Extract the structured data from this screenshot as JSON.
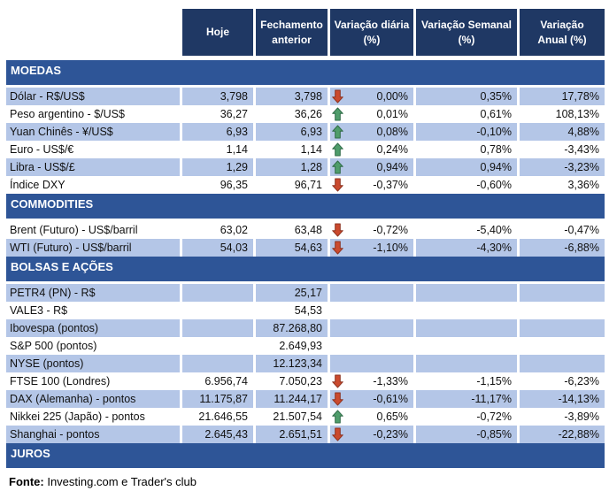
{
  "header": {
    "columns": [
      "Hoje",
      "Fechamento\nanterior",
      "Variação diária\n(%)",
      "Variação Semanal\n(%)",
      "Variação\nAnual (%)"
    ]
  },
  "sections": [
    {
      "title": "MOEDAS",
      "rows": [
        {
          "label": "Dólar - R$/US$",
          "hoje": "3,798",
          "fechamento": "3,798",
          "arrow": "down",
          "diaria": "0,00%",
          "semanal": "0,35%",
          "anual": "17,78%",
          "shaded": true
        },
        {
          "label": "Peso argentino - $/US$",
          "hoje": "36,27",
          "fechamento": "36,26",
          "arrow": "up",
          "diaria": "0,01%",
          "semanal": "0,61%",
          "anual": "108,13%",
          "shaded": false
        },
        {
          "label": "Yuan Chinês - ¥/US$",
          "hoje": "6,93",
          "fechamento": "6,93",
          "arrow": "up",
          "diaria": "0,08%",
          "semanal": "-0,10%",
          "anual": "4,88%",
          "shaded": true
        },
        {
          "label": "Euro - US$/€",
          "hoje": "1,14",
          "fechamento": "1,14",
          "arrow": "up",
          "diaria": "0,24%",
          "semanal": "0,78%",
          "anual": "-3,43%",
          "shaded": false
        },
        {
          "label": "Libra - US$/£",
          "hoje": "1,29",
          "fechamento": "1,28",
          "arrow": "up",
          "diaria": "0,94%",
          "semanal": "0,94%",
          "anual": "-3,23%",
          "shaded": true
        },
        {
          "label": "Índice DXY",
          "hoje": "96,35",
          "fechamento": "96,71",
          "arrow": "down",
          "diaria": "-0,37%",
          "semanal": "-0,60%",
          "anual": "3,36%",
          "shaded": false
        }
      ]
    },
    {
      "title": "COMMODITIES",
      "rows": [
        {
          "label": "Brent (Futuro) - US$/barril",
          "hoje": "63,02",
          "fechamento": "63,48",
          "arrow": "down",
          "diaria": "-0,72%",
          "semanal": "-5,40%",
          "anual": "-0,47%",
          "shaded": false
        },
        {
          "label": "WTI (Futuro) - US$/barril",
          "hoje": "54,03",
          "fechamento": "54,63",
          "arrow": "down",
          "diaria": "-1,10%",
          "semanal": "-4,30%",
          "anual": "-6,88%",
          "shaded": true
        }
      ]
    },
    {
      "title": "BOLSAS E AÇÕES",
      "rows": [
        {
          "label": "PETR4 (PN) - R$",
          "hoje": "",
          "fechamento": "25,17",
          "arrow": "",
          "diaria": "",
          "semanal": "",
          "anual": "",
          "shaded": true
        },
        {
          "label": "VALE3 - R$",
          "hoje": "",
          "fechamento": "54,53",
          "arrow": "",
          "diaria": "",
          "semanal": "",
          "anual": "",
          "shaded": false
        },
        {
          "label": "Ibovespa (pontos)",
          "hoje": "",
          "fechamento": "87.268,80",
          "arrow": "",
          "diaria": "",
          "semanal": "",
          "anual": "",
          "shaded": true
        },
        {
          "label": "S&P 500 (pontos)",
          "hoje": "",
          "fechamento": "2.649,93",
          "arrow": "",
          "diaria": "",
          "semanal": "",
          "anual": "",
          "shaded": false
        },
        {
          "label": "NYSE (pontos)",
          "hoje": "",
          "fechamento": "12.123,34",
          "arrow": "",
          "diaria": "",
          "semanal": "",
          "anual": "",
          "shaded": true
        },
        {
          "label": "FTSE 100 (Londres)",
          "hoje": "6.956,74",
          "fechamento": "7.050,23",
          "arrow": "down",
          "diaria": "-1,33%",
          "semanal": "-1,15%",
          "anual": "-6,23%",
          "shaded": false
        },
        {
          "label": "DAX (Alemanha) - pontos",
          "hoje": "11.175,87",
          "fechamento": "11.244,17",
          "arrow": "down",
          "diaria": "-0,61%",
          "semanal": "-11,17%",
          "anual": "-14,13%",
          "shaded": true
        },
        {
          "label": "Nikkei 225 (Japão) - pontos",
          "hoje": "21.646,55",
          "fechamento": "21.507,54",
          "arrow": "up",
          "diaria": "0,65%",
          "semanal": "-0,72%",
          "anual": "-3,89%",
          "shaded": false
        },
        {
          "label": "Shanghai - pontos",
          "hoje": "2.645,43",
          "fechamento": "2.651,51",
          "arrow": "down",
          "diaria": "-0,23%",
          "semanal": "-0,85%",
          "anual": "-22,88%",
          "shaded": true
        }
      ]
    },
    {
      "title": "JUROS",
      "rows": []
    }
  ],
  "footer": {
    "source_label": "Fonte:",
    "source_text": " Investing.com e Trader's club"
  },
  "colors": {
    "header_bg": "#1F3864",
    "band_bg": "#2E5597",
    "stripe_bg": "#B4C6E7",
    "arrow_up": "#4F9D6B",
    "arrow_up_border": "#2F6B47",
    "arrow_down": "#CB4A2E",
    "arrow_down_border": "#8E3320"
  },
  "icons": {
    "up": "up-arrow-icon",
    "down": "down-arrow-icon"
  }
}
